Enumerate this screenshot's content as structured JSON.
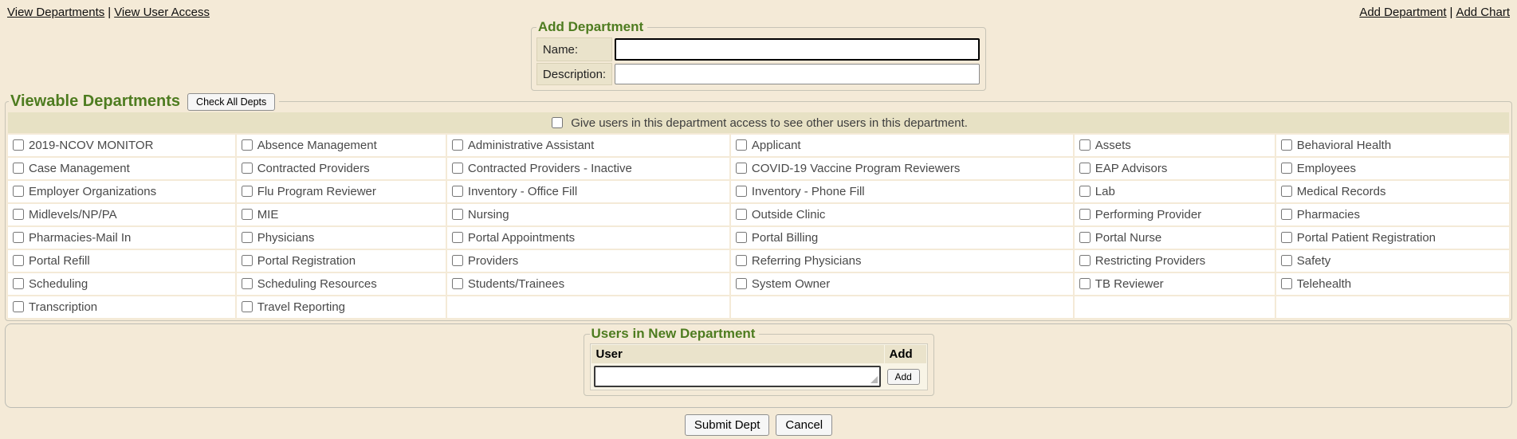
{
  "colors": {
    "page_bg": "#f4ead7",
    "beige_accent": "#e7e1c4",
    "heading_green": "#4e7c20",
    "cell_bg": "#ffffff"
  },
  "nav": {
    "separator": "|",
    "left": [
      {
        "label": "View Departments"
      },
      {
        "label": "View User Access"
      }
    ],
    "right": [
      {
        "label": "Add Department"
      },
      {
        "label": "Add Chart"
      }
    ]
  },
  "add_department": {
    "legend": "Add Department",
    "name_label": "Name:",
    "name_value": "",
    "description_label": "Description:",
    "description_value": ""
  },
  "viewable_departments": {
    "legend": "Viewable Departments",
    "check_all_label": "Check All Depts",
    "access_checkbox_label": "Give users in this department access to see other users in this department.",
    "access_checkbox_checked": false,
    "columns": 6,
    "departments": [
      "2019-NCOV MONITOR",
      "Absence Management",
      "Administrative Assistant",
      "Applicant",
      "Assets",
      "Behavioral Health",
      "Case Management",
      "Contracted Providers",
      "Contracted Providers - Inactive",
      "COVID-19 Vaccine Program Reviewers",
      "EAP Advisors",
      "Employees",
      "Employer Organizations",
      "Flu Program Reviewer",
      "Inventory - Office Fill",
      "Inventory - Phone Fill",
      "Lab",
      "Medical Records",
      "Midlevels/NP/PA",
      "MIE",
      "Nursing",
      "Outside Clinic",
      "Performing Provider",
      "Pharmacies",
      "Pharmacies-Mail In",
      "Physicians",
      "Portal Appointments",
      "Portal Billing",
      "Portal Nurse",
      "Portal Patient Registration",
      "Portal Refill",
      "Portal Registration",
      "Providers",
      "Referring Physicians",
      "Restricting Providers",
      "Safety",
      "Scheduling",
      "Scheduling Resources",
      "Students/Trainees",
      "System Owner",
      "TB Reviewer",
      "Telehealth",
      "Transcription",
      "Travel Reporting"
    ],
    "all_checked": false
  },
  "users_in_new_department": {
    "legend": "Users in New Department",
    "user_header": "User",
    "add_header": "Add",
    "user_input_value": "",
    "add_button_label": "Add"
  },
  "actions": {
    "submit_label": "Submit Dept",
    "cancel_label": "Cancel"
  }
}
